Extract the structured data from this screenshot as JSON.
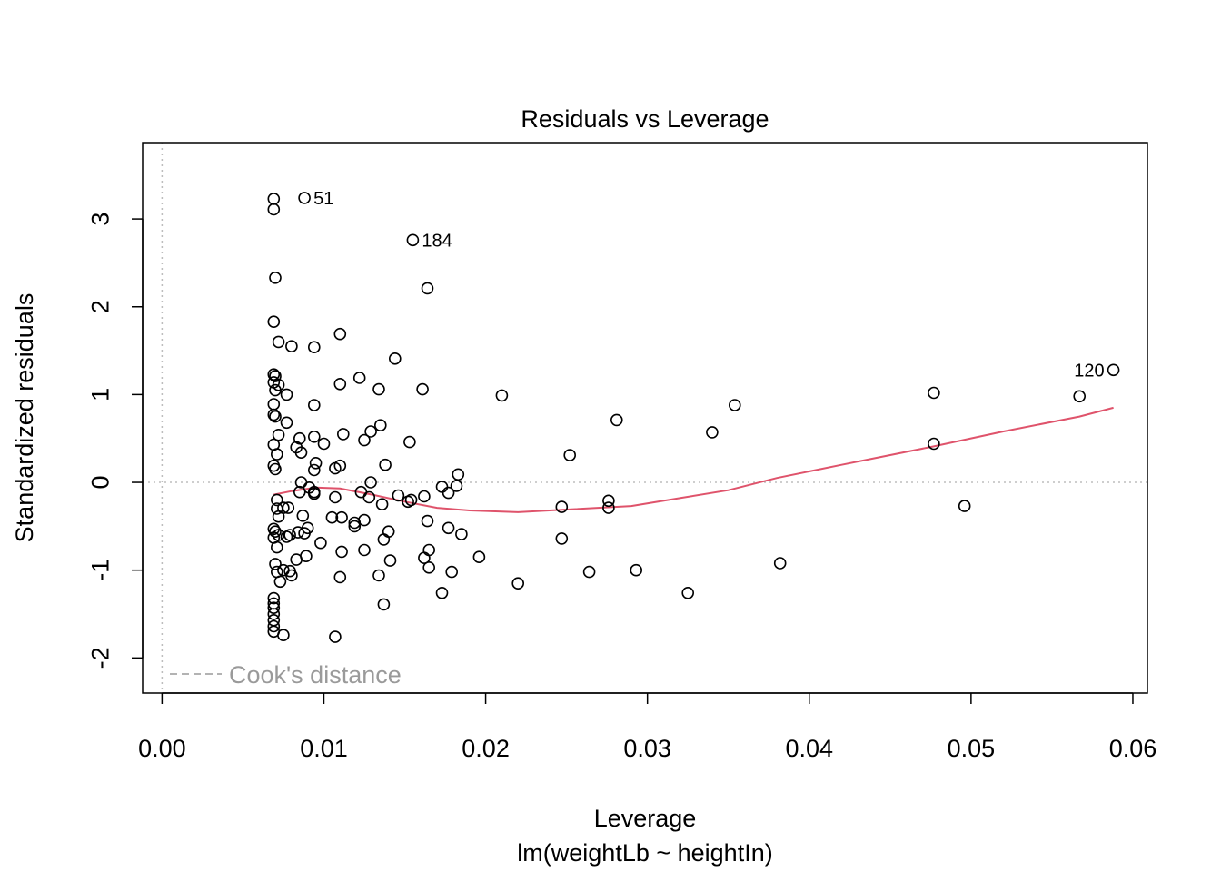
{
  "chart_data": {
    "type": "scatter",
    "title": "Residuals vs Leverage",
    "xlabel": "Leverage",
    "sublabel": "lm(weightLb ~ heightIn)",
    "ylabel": "Standardized residuals",
    "xlim": [
      -0.0012,
      0.0609
    ],
    "ylim": [
      -2.4,
      3.87
    ],
    "x_ticks": [
      0.0,
      0.01,
      0.02,
      0.03,
      0.04,
      0.05,
      0.06
    ],
    "x_tick_labels": [
      "0.00",
      "0.01",
      "0.02",
      "0.03",
      "0.04",
      "0.05",
      "0.06"
    ],
    "y_ticks": [
      -2,
      -1,
      0,
      1,
      2,
      3
    ],
    "y_tick_labels": [
      "-2",
      "-1",
      "0",
      "1",
      "2",
      "3"
    ],
    "reference_lines": {
      "h": 0,
      "v": 0,
      "style": "dotted",
      "color": "#bdbdbd"
    },
    "legend": {
      "label": "Cook's distance",
      "placement": "bottom-left",
      "style": "dashed",
      "color": "#9a9a9a"
    },
    "colors": {
      "points": "#000000",
      "smooth": "#DF536B",
      "frame": "#000000"
    },
    "points": [
      [
        0.0069,
        3.23
      ],
      [
        0.0069,
        3.11
      ],
      [
        0.0088,
        3.24
      ],
      [
        0.0155,
        2.76
      ],
      [
        0.007,
        2.33
      ],
      [
        0.0164,
        2.21
      ],
      [
        0.0069,
        1.83
      ],
      [
        0.0072,
        1.6
      ],
      [
        0.008,
        1.55
      ],
      [
        0.0094,
        1.54
      ],
      [
        0.011,
        1.69
      ],
      [
        0.0144,
        1.41
      ],
      [
        0.0069,
        1.23
      ],
      [
        0.007,
        1.21
      ],
      [
        0.0069,
        1.14
      ],
      [
        0.0072,
        1.11
      ],
      [
        0.0122,
        1.19
      ],
      [
        0.011,
        1.12
      ],
      [
        0.0134,
        1.06
      ],
      [
        0.0161,
        1.06
      ],
      [
        0.007,
        1.05
      ],
      [
        0.0077,
        1.0
      ],
      [
        0.021,
        0.99
      ],
      [
        0.0069,
        0.89
      ],
      [
        0.0094,
        0.88
      ],
      [
        0.0069,
        0.77
      ],
      [
        0.007,
        0.75
      ],
      [
        0.0077,
        0.68
      ],
      [
        0.0135,
        0.65
      ],
      [
        0.0281,
        0.71
      ],
      [
        0.0072,
        0.54
      ],
      [
        0.0085,
        0.5
      ],
      [
        0.0094,
        0.52
      ],
      [
        0.0112,
        0.55
      ],
      [
        0.0125,
        0.48
      ],
      [
        0.0129,
        0.58
      ],
      [
        0.0069,
        0.43
      ],
      [
        0.0083,
        0.4
      ],
      [
        0.01,
        0.44
      ],
      [
        0.0153,
        0.46
      ],
      [
        0.0071,
        0.32
      ],
      [
        0.0086,
        0.34
      ],
      [
        0.0252,
        0.31
      ],
      [
        0.0069,
        0.19
      ],
      [
        0.007,
        0.15
      ],
      [
        0.0095,
        0.22
      ],
      [
        0.011,
        0.19
      ],
      [
        0.0107,
        0.16
      ],
      [
        0.0138,
        0.2
      ],
      [
        0.0094,
        0.14
      ],
      [
        0.0183,
        0.09
      ],
      [
        0.0086,
        0.0
      ],
      [
        0.0129,
        0.0
      ],
      [
        0.0173,
        -0.05
      ],
      [
        0.0182,
        -0.04
      ],
      [
        0.0091,
        -0.06
      ],
      [
        0.0085,
        -0.11
      ],
      [
        0.0094,
        -0.11
      ],
      [
        0.0123,
        -0.11
      ],
      [
        0.0071,
        -0.2
      ],
      [
        0.0107,
        -0.17
      ],
      [
        0.0128,
        -0.17
      ],
      [
        0.0146,
        -0.15
      ],
      [
        0.0152,
        -0.22
      ],
      [
        0.0162,
        -0.16
      ],
      [
        0.0177,
        -0.12
      ],
      [
        0.0094,
        -0.13
      ],
      [
        0.0071,
        -0.3
      ],
      [
        0.0075,
        -0.29
      ],
      [
        0.0078,
        -0.29
      ],
      [
        0.0136,
        -0.25
      ],
      [
        0.0154,
        -0.2
      ],
      [
        0.0247,
        -0.28
      ],
      [
        0.0276,
        -0.21
      ],
      [
        0.0276,
        -0.29
      ],
      [
        0.0072,
        -0.39
      ],
      [
        0.0087,
        -0.38
      ],
      [
        0.0105,
        -0.4
      ],
      [
        0.0111,
        -0.4
      ],
      [
        0.0119,
        -0.46
      ],
      [
        0.0119,
        -0.5
      ],
      [
        0.0125,
        -0.43
      ],
      [
        0.0164,
        -0.44
      ],
      [
        0.0069,
        -0.53
      ],
      [
        0.007,
        -0.56
      ],
      [
        0.0072,
        -0.6
      ],
      [
        0.0077,
        -0.62
      ],
      [
        0.0079,
        -0.6
      ],
      [
        0.0084,
        -0.57
      ],
      [
        0.0088,
        -0.58
      ],
      [
        0.009,
        -0.52
      ],
      [
        0.014,
        -0.56
      ],
      [
        0.0177,
        -0.52
      ],
      [
        0.0185,
        -0.59
      ],
      [
        0.0069,
        -0.63
      ],
      [
        0.0071,
        -0.74
      ],
      [
        0.0098,
        -0.69
      ],
      [
        0.0111,
        -0.79
      ],
      [
        0.0125,
        -0.77
      ],
      [
        0.0137,
        -0.65
      ],
      [
        0.0165,
        -0.77
      ],
      [
        0.0162,
        -0.86
      ],
      [
        0.0196,
        -0.85
      ],
      [
        0.0247,
        -0.64
      ],
      [
        0.0083,
        -0.88
      ],
      [
        0.0089,
        -0.84
      ],
      [
        0.007,
        -0.93
      ],
      [
        0.0071,
        -1.02
      ],
      [
        0.0075,
        -1.0
      ],
      [
        0.0079,
        -1.01
      ],
      [
        0.008,
        -1.06
      ],
      [
        0.0141,
        -0.89
      ],
      [
        0.0165,
        -0.97
      ],
      [
        0.0179,
        -1.02
      ],
      [
        0.0073,
        -1.13
      ],
      [
        0.011,
        -1.08
      ],
      [
        0.0134,
        -1.06
      ],
      [
        0.022,
        -1.15
      ],
      [
        0.0264,
        -1.02
      ],
      [
        0.0293,
        -1.0
      ],
      [
        0.0382,
        -0.92
      ],
      [
        0.0069,
        -1.32
      ],
      [
        0.0069,
        -1.38
      ],
      [
        0.0069,
        -1.43
      ],
      [
        0.0069,
        -1.5
      ],
      [
        0.0069,
        -1.57
      ],
      [
        0.0069,
        -1.64
      ],
      [
        0.0069,
        -1.7
      ],
      [
        0.0075,
        -1.74
      ],
      [
        0.0107,
        -1.76
      ],
      [
        0.0137,
        -1.39
      ],
      [
        0.0173,
        -1.26
      ],
      [
        0.0325,
        -1.26
      ],
      [
        0.034,
        0.57
      ],
      [
        0.0354,
        0.88
      ],
      [
        0.0477,
        1.02
      ],
      [
        0.0477,
        0.44
      ],
      [
        0.0496,
        -0.27
      ],
      [
        0.0567,
        0.98
      ],
      [
        0.0588,
        1.28
      ]
    ],
    "point_labels": [
      {
        "text": "51",
        "x": 0.0088,
        "y": 3.24,
        "pos": "right"
      },
      {
        "text": "184",
        "x": 0.0155,
        "y": 2.76,
        "pos": "right"
      },
      {
        "text": "120",
        "x": 0.0588,
        "y": 1.28,
        "pos": "left"
      }
    ],
    "smooth": [
      [
        0.0069,
        -0.14
      ],
      [
        0.008,
        -0.1
      ],
      [
        0.0095,
        -0.06
      ],
      [
        0.011,
        -0.07
      ],
      [
        0.013,
        -0.14
      ],
      [
        0.015,
        -0.22
      ],
      [
        0.017,
        -0.29
      ],
      [
        0.019,
        -0.32
      ],
      [
        0.022,
        -0.34
      ],
      [
        0.025,
        -0.31
      ],
      [
        0.029,
        -0.27
      ],
      [
        0.032,
        -0.18
      ],
      [
        0.035,
        -0.09
      ],
      [
        0.038,
        0.05
      ],
      [
        0.042,
        0.2
      ],
      [
        0.0477,
        0.41
      ],
      [
        0.052,
        0.58
      ],
      [
        0.0567,
        0.75
      ],
      [
        0.0588,
        0.85
      ]
    ]
  }
}
